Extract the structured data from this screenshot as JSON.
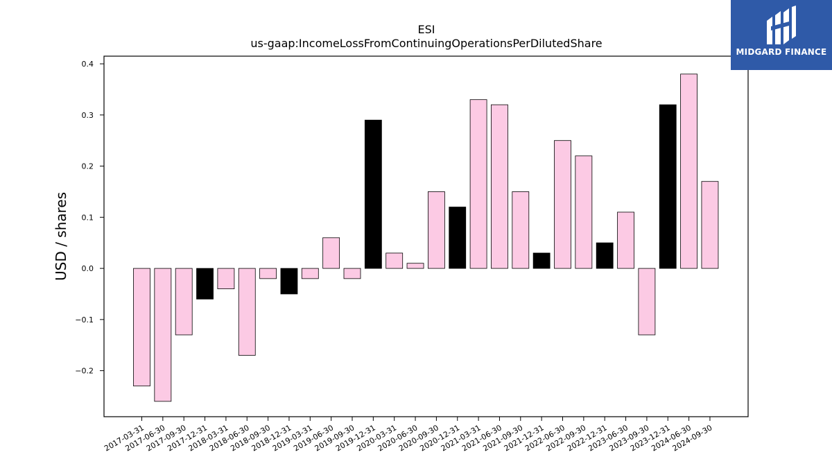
{
  "brand": {
    "name": "MIDGARD FINANCE",
    "color": "#2f5aa8"
  },
  "chart_data": {
    "type": "bar",
    "title": "ESI",
    "subtitle": "us-gaap:IncomeLossFromContinuingOperationsPerDilutedShare",
    "xlabel": "",
    "ylabel": "USD / shares",
    "ylim": [
      -0.29,
      0.415
    ],
    "yticks": [
      -0.2,
      -0.1,
      0.0,
      0.1,
      0.2,
      0.3,
      0.4
    ],
    "ytick_labels": [
      "−0.2",
      "−0.1",
      "0.0",
      "0.1",
      "0.2",
      "0.3",
      "0.4"
    ],
    "grid": false,
    "legend": "none",
    "colors": {
      "quarter": "#fccae4",
      "year_end": "#000000",
      "edge": "#000000"
    },
    "categories": [
      "2017-03-31",
      "2017-06-30",
      "2017-09-30",
      "2017-12-31",
      "2018-03-31",
      "2018-06-30",
      "2018-09-30",
      "2018-12-31",
      "2019-03-31",
      "2019-06-30",
      "2019-09-30",
      "2019-12-31",
      "2020-03-31",
      "2020-06-30",
      "2020-09-30",
      "2020-12-31",
      "2021-03-31",
      "2021-06-30",
      "2021-09-30",
      "2021-12-31",
      "2022-06-30",
      "2022-09-30",
      "2022-12-31",
      "2023-06-30",
      "2023-09-30",
      "2023-12-31",
      "2024-06-30",
      "2024-09-30"
    ],
    "values": [
      -0.23,
      -0.26,
      -0.13,
      -0.06,
      -0.04,
      -0.17,
      -0.02,
      -0.05,
      -0.02,
      0.06,
      -0.02,
      0.29,
      0.03,
      0.01,
      0.15,
      0.12,
      0.33,
      0.32,
      0.15,
      0.03,
      0.25,
      0.22,
      0.05,
      0.11,
      -0.13,
      0.32,
      0.38,
      0.17
    ]
  }
}
